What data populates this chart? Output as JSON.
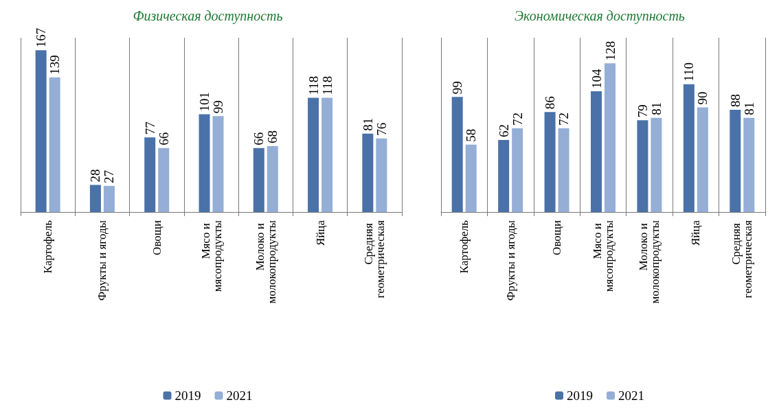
{
  "chart_data": [
    {
      "type": "bar",
      "title": "Физическая доступность",
      "categories": [
        "Картофель",
        "Фрукты и ягоды",
        "Овощи",
        "Мясо и мясопродукты",
        "Молоко и молокопродукты",
        "Яйца",
        "Средняя геометрическая"
      ],
      "series": [
        {
          "name": "2019",
          "color": "#4a72a8",
          "values": [
            167,
            28,
            77,
            101,
            66,
            118,
            81
          ]
        },
        {
          "name": "2021",
          "color": "#94aed6",
          "values": [
            139,
            27,
            66,
            99,
            68,
            118,
            76
          ]
        }
      ],
      "data_labels": true,
      "grid": "x",
      "legend": "bottom"
    },
    {
      "type": "bar",
      "title": "Экономическая доступность",
      "categories": [
        "Картофель",
        "Фрукты и ягоды",
        "Овощи",
        "Мясо и мясопродукты",
        "Молоко и молокопродукты",
        "Яйца",
        "Средняя геометрическая"
      ],
      "series": [
        {
          "name": "2019",
          "color": "#4a72a8",
          "values": [
            99,
            62,
            86,
            104,
            79,
            110,
            88
          ]
        },
        {
          "name": "2021",
          "color": "#94aed6",
          "values": [
            58,
            72,
            72,
            128,
            81,
            90,
            81
          ]
        }
      ],
      "data_labels": true,
      "grid": "x",
      "legend": "bottom"
    }
  ]
}
